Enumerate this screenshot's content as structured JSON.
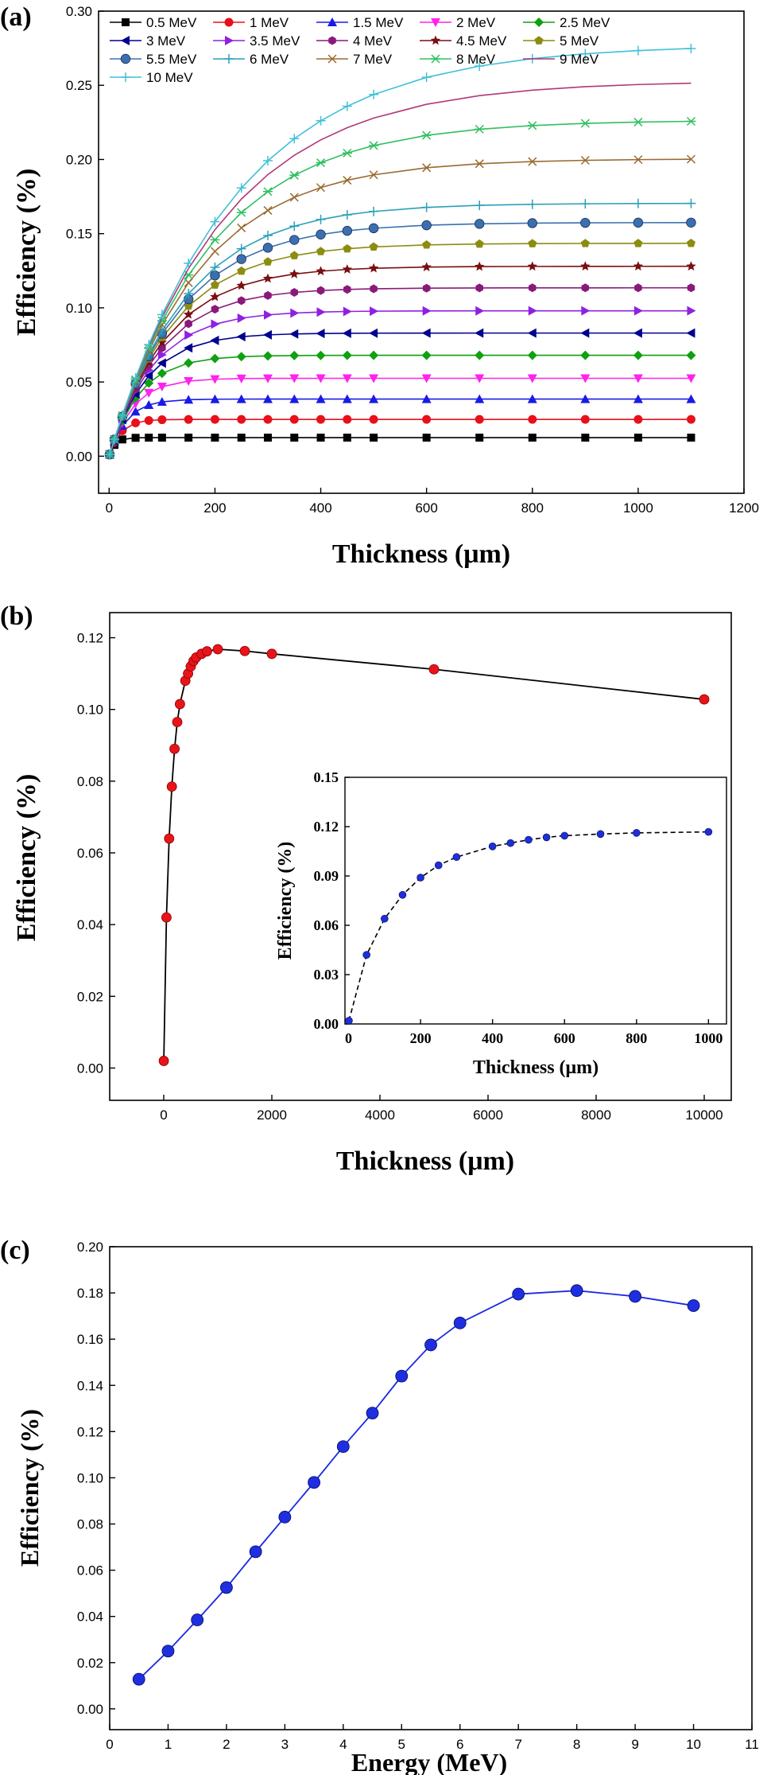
{
  "chart_data": [
    {
      "panel_label": "(a)",
      "type": "line",
      "xlabel": "Thickness (μm)",
      "ylabel": "Efficiency (%)",
      "xlim": [
        -20,
        1200
      ],
      "ylim": [
        -0.025,
        0.3
      ],
      "xticks": [
        "0",
        "200",
        "400",
        "600",
        "800",
        "1000",
        "1200"
      ],
      "yticks": [
        "0.00",
        "0.05",
        "0.10",
        "0.15",
        "0.20",
        "0.25",
        "0.30"
      ],
      "legend_position": "top-left",
      "series": [
        {
          "name": "0.5 MeV",
          "color": "#000000",
          "marker": "square",
          "plateau": 0.0125
        },
        {
          "name": "1 MeV",
          "color": "#e8101a",
          "marker": "circle",
          "plateau": 0.0248
        },
        {
          "name": "1.5 MeV",
          "color": "#1a1ae8",
          "marker": "triangle-up",
          "plateau": 0.0385
        },
        {
          "name": "2 MeV",
          "color": "#ff22ee",
          "marker": "triangle-down",
          "plateau": 0.0525
        },
        {
          "name": "2.5 MeV",
          "color": "#10a010",
          "marker": "diamond",
          "plateau": 0.068
        },
        {
          "name": "3 MeV",
          "color": "#000090",
          "marker": "triangle-left",
          "plateau": 0.083
        },
        {
          "name": "3.5 MeV",
          "color": "#9020e0",
          "marker": "triangle-right",
          "plateau": 0.098
        },
        {
          "name": "4 MeV",
          "color": "#8a1a7a",
          "marker": "hexagon",
          "plateau": 0.1135
        },
        {
          "name": "4.5 MeV",
          "color": "#7a0e10",
          "marker": "star",
          "plateau": 0.128
        },
        {
          "name": "5 MeV",
          "color": "#8c8c10",
          "marker": "pentagon",
          "plateau": 0.1435
        },
        {
          "name": "5.5 MeV",
          "color": "#3a70b0",
          "marker": "sphere",
          "plateau": 0.1575
        },
        {
          "name": "6 MeV",
          "color": "#2aa0b8",
          "marker": "plus",
          "plateau": 0.1705
        },
        {
          "name": "7 MeV",
          "color": "#9a6a30",
          "marker": "x",
          "plateau": 0.2005
        },
        {
          "name": "8 MeV",
          "color": "#30c060",
          "marker": "asterisk",
          "plateau": 0.2265
        },
        {
          "name": "9 MeV",
          "color": "#b03878",
          "marker": "none",
          "plateau": 0.253
        },
        {
          "name": "10 MeV",
          "color": "#40c0d8",
          "marker": "plus",
          "plateau": 0.2775
        }
      ]
    },
    {
      "panel_label": "(b)",
      "type": "line",
      "xlabel": "Thickness (μm)",
      "ylabel": "Efficiency (%)",
      "xlim": [
        -1000,
        10500
      ],
      "ylim": [
        -0.009,
        0.127
      ],
      "xticks": [
        "0",
        "2000",
        "4000",
        "6000",
        "8000",
        "10000"
      ],
      "yticks": [
        "0.00",
        "0.02",
        "0.04",
        "0.06",
        "0.08",
        "0.10",
        "0.12"
      ],
      "x": [
        1,
        50,
        100,
        150,
        200,
        250,
        300,
        400,
        450,
        500,
        550,
        600,
        700,
        800,
        1000,
        1500,
        2000,
        5000,
        10000
      ],
      "y": [
        0.002,
        0.042,
        0.064,
        0.0785,
        0.089,
        0.0965,
        0.1015,
        0.108,
        0.11,
        0.112,
        0.1135,
        0.1145,
        0.1155,
        0.1162,
        0.1168,
        0.1163,
        0.1155,
        0.1112,
        0.1028
      ],
      "inset": {
        "type": "line",
        "xlabel": "Thickness (μm)",
        "ylabel": "Efficiency (%)",
        "xlim": [
          -10,
          1050
        ],
        "ylim": [
          0,
          0.15
        ],
        "xticks": [
          "0",
          "200",
          "400",
          "600",
          "800",
          "1000"
        ],
        "yticks": [
          "0.00",
          "0.03",
          "0.06",
          "0.09",
          "0.12",
          "0.15"
        ],
        "x": [
          1,
          50,
          100,
          150,
          200,
          250,
          300,
          400,
          450,
          500,
          550,
          600,
          700,
          800,
          1000
        ],
        "y": [
          0.002,
          0.042,
          0.064,
          0.0785,
          0.089,
          0.0965,
          0.1015,
          0.108,
          0.11,
          0.112,
          0.1135,
          0.1145,
          0.1155,
          0.1162,
          0.1168
        ]
      }
    },
    {
      "panel_label": "(c)",
      "type": "line",
      "xlabel": "Energy (MeV)",
      "ylabel": "Efficiency (%)",
      "xlim": [
        0,
        11
      ],
      "ylim": [
        -0.009,
        0.2
      ],
      "xticks": [
        "0",
        "1",
        "2",
        "3",
        "4",
        "5",
        "6",
        "7",
        "8",
        "9",
        "10",
        "11"
      ],
      "yticks": [
        "0.00",
        "0.02",
        "0.04",
        "0.06",
        "0.08",
        "0.10",
        "0.12",
        "0.14",
        "0.16",
        "0.18",
        "0.20"
      ],
      "x": [
        0.5,
        1,
        1.5,
        2,
        2.5,
        3,
        3.5,
        4,
        4.5,
        5,
        5.5,
        6,
        7,
        8,
        9,
        10
      ],
      "y": [
        0.0128,
        0.025,
        0.0385,
        0.0525,
        0.068,
        0.083,
        0.098,
        0.1135,
        0.128,
        0.144,
        0.1575,
        0.167,
        0.1795,
        0.181,
        0.1785,
        0.1745
      ]
    }
  ]
}
